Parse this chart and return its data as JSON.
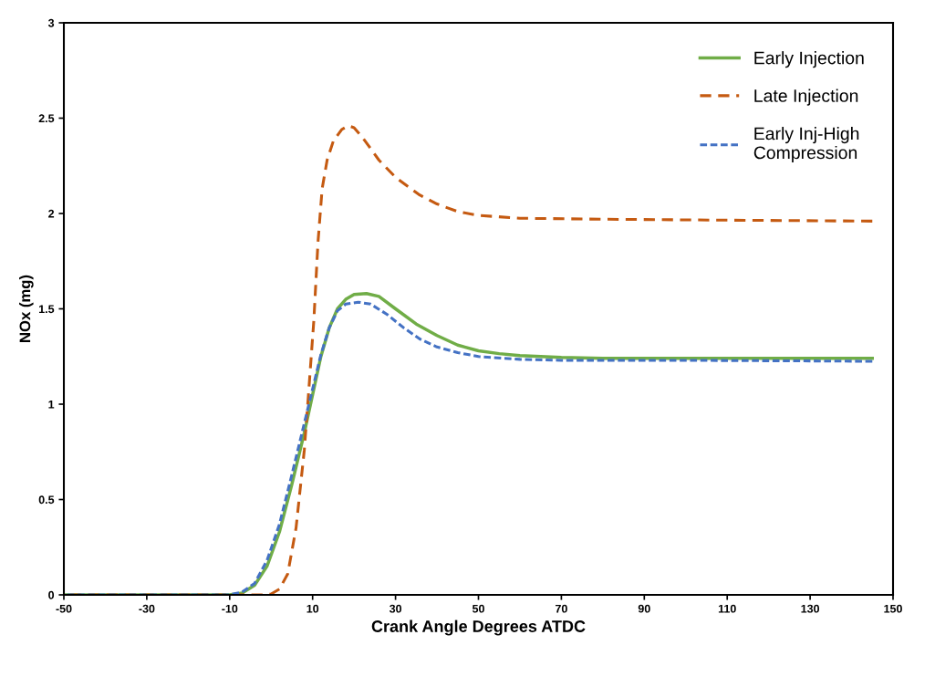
{
  "chart_data": {
    "type": "line",
    "xlabel": "Crank Angle Degrees ATDC",
    "ylabel": "NOx (mg)",
    "xlim": [
      -50,
      150
    ],
    "xticks": [
      -50,
      -30,
      -10,
      10,
      30,
      50,
      70,
      90,
      110,
      130,
      150
    ],
    "ylim": [
      0,
      3
    ],
    "yticks": [
      0,
      0.5,
      1,
      1.5,
      2,
      2.5,
      3
    ],
    "grid": false,
    "legend": "top right",
    "marker": "none",
    "series": [
      {
        "name": "Early Injection",
        "color": "#70ad47",
        "line_style": "solid",
        "x": [
          -50,
          -10,
          -7,
          -4,
          -1,
          2,
          5,
          8,
          10,
          12,
          14,
          16,
          18,
          20,
          23,
          26,
          30,
          35,
          40,
          45,
          50,
          55,
          60,
          70,
          80,
          100,
          120,
          145
        ],
        "values": [
          0,
          0,
          0.01,
          0.05,
          0.15,
          0.33,
          0.58,
          0.85,
          1.05,
          1.25,
          1.4,
          1.5,
          1.55,
          1.575,
          1.58,
          1.565,
          1.5,
          1.42,
          1.36,
          1.31,
          1.28,
          1.265,
          1.255,
          1.245,
          1.24,
          1.24,
          1.24,
          1.24
        ]
      },
      {
        "name": "Late Injection",
        "color": "#c55a11",
        "line_style": "dashed",
        "x": [
          -50,
          -2,
          0,
          2,
          4,
          6,
          8,
          9,
          10.3,
          11.3,
          12.3,
          13.5,
          15,
          17,
          18.6,
          20,
          22,
          26,
          30,
          35.6,
          40,
          45,
          50,
          60,
          80,
          110,
          145
        ],
        "values": [
          0,
          0,
          0.005,
          0.03,
          0.11,
          0.35,
          0.76,
          1.05,
          1.44,
          1.85,
          2.13,
          2.28,
          2.38,
          2.44,
          2.46,
          2.45,
          2.4,
          2.28,
          2.19,
          2.1,
          2.05,
          2.01,
          1.99,
          1.975,
          1.97,
          1.965,
          1.96
        ]
      },
      {
        "name": "Early Inj-High\nCompression",
        "color": "#4472c4",
        "line_style": "dotted",
        "x": [
          -50,
          -10,
          -7,
          -4,
          -1,
          2,
          5,
          8,
          10,
          12,
          14,
          16,
          18,
          21,
          24,
          28,
          32,
          36,
          40,
          45,
          50,
          60,
          70,
          100,
          145
        ],
        "values": [
          0,
          0,
          0.015,
          0.06,
          0.18,
          0.37,
          0.63,
          0.9,
          1.08,
          1.26,
          1.4,
          1.49,
          1.525,
          1.535,
          1.525,
          1.47,
          1.4,
          1.34,
          1.3,
          1.27,
          1.25,
          1.235,
          1.23,
          1.23,
          1.225
        ]
      }
    ]
  }
}
